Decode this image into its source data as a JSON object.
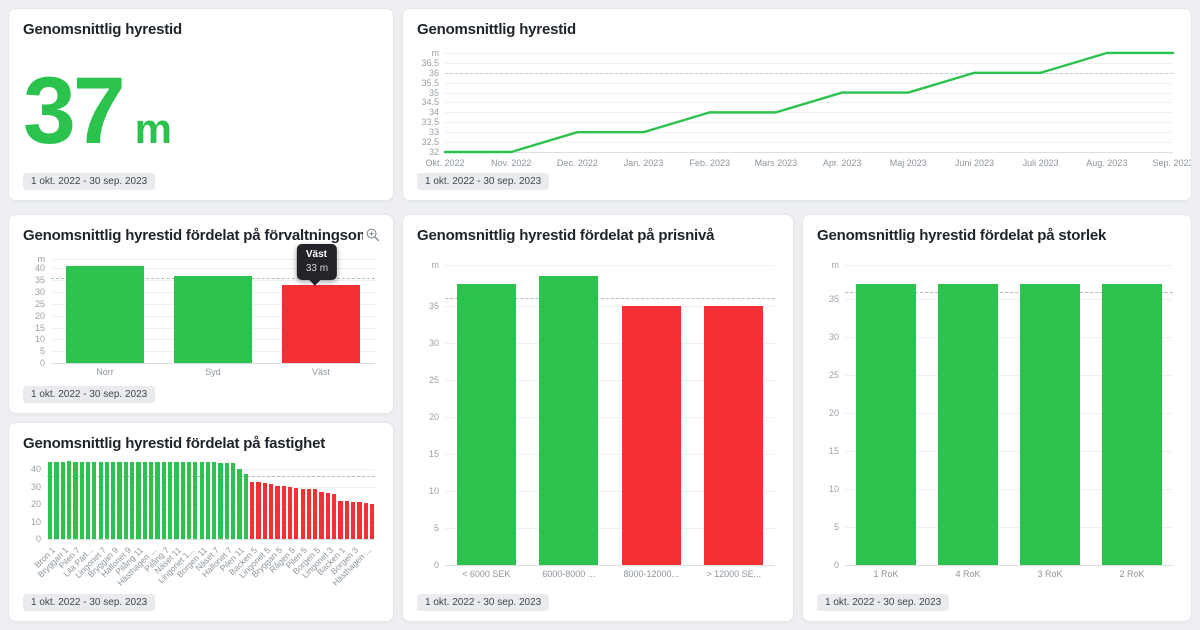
{
  "period_badge": "1 okt. 2022 - 30 sep. 2023",
  "colors": {
    "green": "#2bc24e",
    "red": "#f53034",
    "grid": "#eef0f2",
    "tick_text": "#9aa1a8",
    "title_text": "#1e242a",
    "badge_bg": "#e9ebee",
    "page_bg": "#edeff2",
    "tooltip_bg": "#232429",
    "threshold_gray": "#c7cbce",
    "threshold_green": "#adc6b3"
  },
  "kpi": {
    "title": "Genomsnittlig hyrestid",
    "value": "37",
    "unit": "m"
  },
  "icons": {
    "zoom_icon": "magnifier-plus"
  },
  "chart_data": [
    {
      "id": "avg-line",
      "type": "line",
      "title": "Genomsnittlig hyrestid",
      "x": [
        "Okt. 2022",
        "Nov. 2022",
        "Dec. 2022",
        "Jan. 2023",
        "Feb. 2023",
        "Mars 2023",
        "Apr. 2023",
        "Maj 2023",
        "Juni 2023",
        "Juli 2023",
        "Aug. 2023",
        "Sep. 2023"
      ],
      "values": [
        32,
        32,
        33,
        33,
        34,
        34,
        35,
        35,
        36,
        36,
        37,
        37
      ],
      "ylim": [
        32,
        37.2
      ],
      "yticks": [
        32,
        32.5,
        33,
        33.5,
        34,
        34.5,
        35,
        35.5,
        36,
        36.5
      ],
      "unit_tick": {
        "value": 37,
        "label": "m"
      },
      "threshold": 36,
      "threshold_color": "#c7cbce",
      "grid": true,
      "legend": "none"
    },
    {
      "id": "omrade",
      "type": "bar",
      "title": "Genomsnittlig hyrestid fördelat på förvaltningsområde",
      "categories": [
        "Norr",
        "Syd",
        "Väst"
      ],
      "values": [
        41,
        37,
        33
      ],
      "ylim": [
        0,
        44
      ],
      "yticks": [
        0,
        5,
        10,
        15,
        20,
        25,
        30,
        35,
        40
      ],
      "unit_tick": {
        "value": 44,
        "label": "m"
      },
      "threshold": 36,
      "threshold_color": "#adc6b3",
      "tooltip": {
        "target_index": 2,
        "title": "Väst",
        "value_label": "33 m"
      },
      "has_zoom_icon": true
    },
    {
      "id": "fastighet",
      "type": "bar",
      "title": "Genomsnittlig hyrestid fördelat på fastighet",
      "values": [
        44.5,
        44.5,
        44.5,
        45,
        44.5,
        44,
        44,
        44,
        44,
        44,
        44,
        44,
        44,
        44,
        44,
        44,
        44,
        44,
        44,
        44,
        44,
        44,
        44,
        44,
        44,
        44,
        44,
        43.5,
        43.5,
        43.5,
        40.5,
        37.5,
        33,
        32.5,
        32,
        31.5,
        30.5,
        30.5,
        30,
        29.5,
        29,
        29,
        28.5,
        27,
        26.5,
        26,
        22,
        22,
        21.5,
        21.5,
        20.5,
        20
      ],
      "xlabels": [
        "Bron 1",
        "Bryggan 1",
        "Pilen 7",
        "Lila Pärl...",
        "Lingonet 7",
        "Bryggan 9",
        "Hallonet 9",
        "Pilång 11",
        "Hästhagen ...",
        "Pilång 7",
        "Näset 11",
        "Lingonet 1...",
        "Borgen 11",
        "Näset 7",
        "Hallonet 7",
        "Pilen 11",
        "Backen 5",
        "Lingonet 5",
        "Bryggan 5",
        "Rågen 5",
        "Pilen 5",
        "Borgen 5",
        "Lingonet 3",
        "Backen 1",
        "Borgen 3",
        "Hästhagen ..."
      ],
      "label_every": 2,
      "ylim": [
        0,
        46
      ],
      "yticks": [
        0,
        10,
        20,
        30,
        40
      ],
      "threshold": 36,
      "threshold_color": "#adc6b3",
      "rotated_labels": true
    },
    {
      "id": "pris",
      "type": "bar",
      "title": "Genomsnittlig hyrestid fördelat på prisnivå",
      "categories": [
        "< 6000 SEK",
        "6000-8000 ...",
        "8000-12000...",
        "> 12000 SE..."
      ],
      "values": [
        38,
        39,
        35,
        35
      ],
      "ylim": [
        0,
        40.5
      ],
      "yticks": [
        0,
        5,
        10,
        15,
        20,
        25,
        30,
        35
      ],
      "unit_tick": {
        "value": 40.5,
        "label": "m"
      },
      "threshold": 36,
      "threshold_color": "#adc6b3"
    },
    {
      "id": "storlek",
      "type": "bar",
      "title": "Genomsnittlig hyrestid fördelat på storlek",
      "categories": [
        "1 RoK",
        "4 RoK",
        "3 RoK",
        "2 RoK"
      ],
      "values": [
        37,
        37,
        37,
        37
      ],
      "ylim": [
        0,
        39.5
      ],
      "yticks": [
        0,
        5,
        10,
        15,
        20,
        25,
        30,
        35
      ],
      "unit_tick": {
        "value": 39.5,
        "label": "m"
      },
      "threshold": 36,
      "threshold_color": "#adc6b3"
    }
  ]
}
